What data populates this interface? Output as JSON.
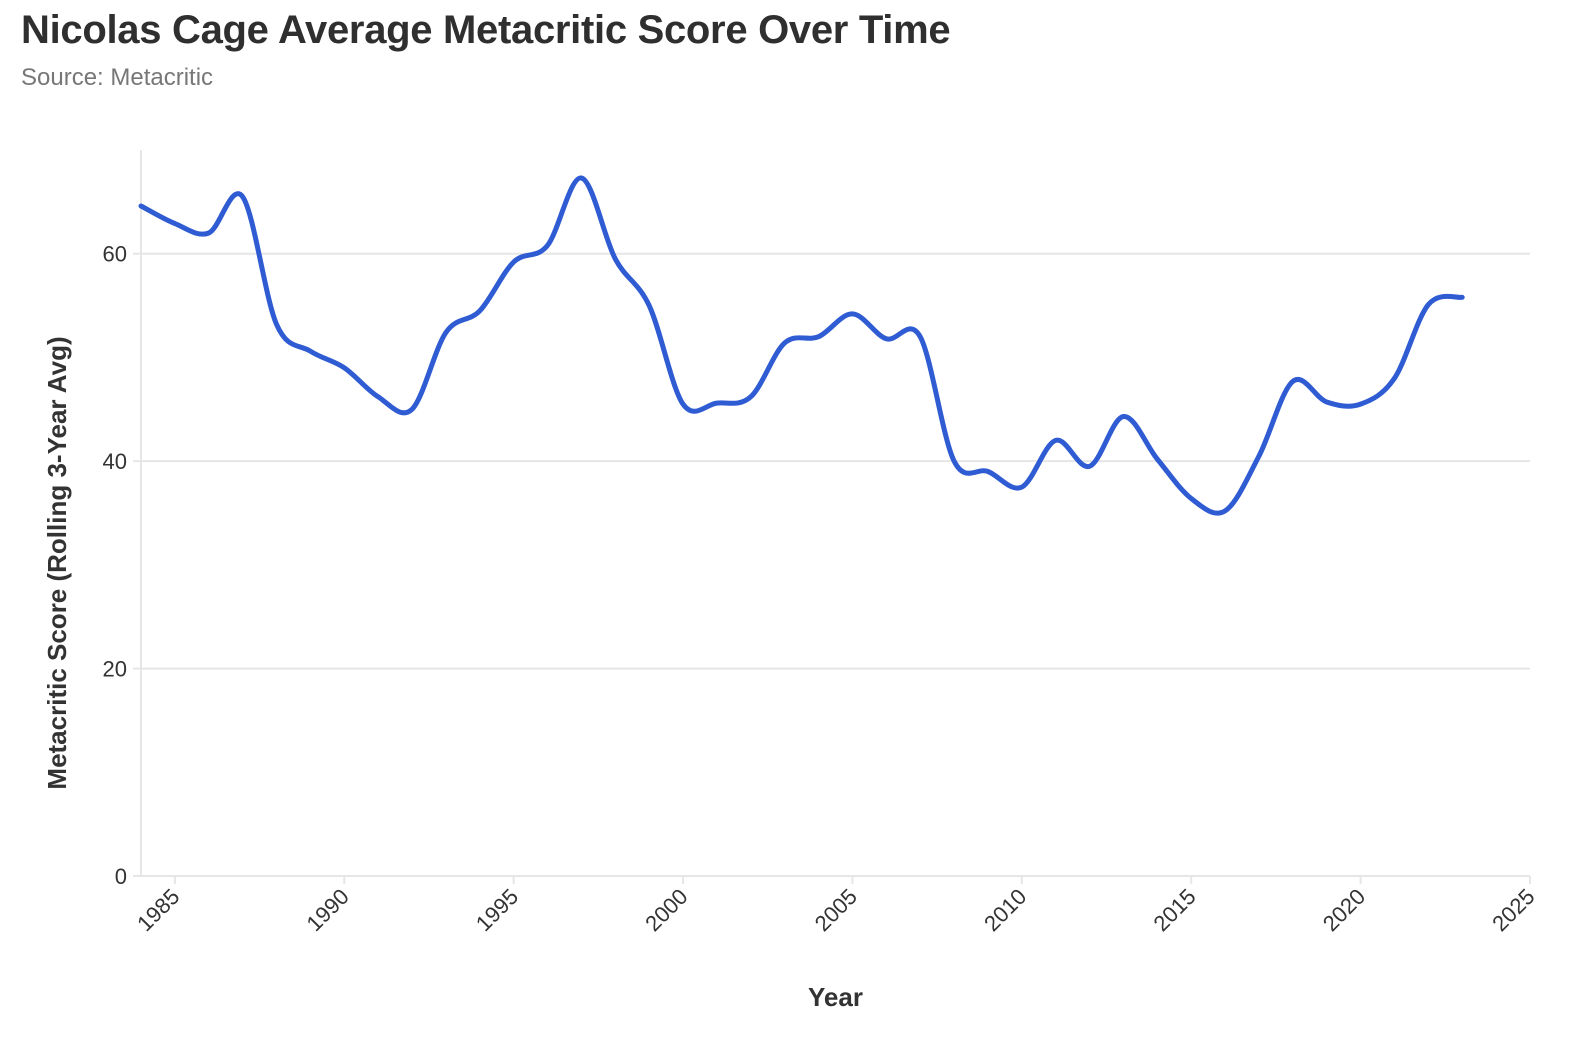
{
  "chart_data": {
    "type": "line",
    "title": "Nicolas Cage Average Metacritic Score Over Time",
    "subtitle": "Source: Metacritic",
    "xlabel": "Year",
    "ylabel": "Metacritic Score (Rolling 3-Year Avg)",
    "xlim": [
      1984,
      2025
    ],
    "ylim": [
      0,
      70
    ],
    "xticks": [
      "1985",
      "1990",
      "1995",
      "2000",
      "2005",
      "2010",
      "2015",
      "2020",
      "2025"
    ],
    "yticks": [
      "0",
      "20",
      "40",
      "60"
    ],
    "grid": "horizontal",
    "series": [
      {
        "color": "#2f5bd3",
        "points": [
          [
            1984,
            64.6
          ],
          [
            1985,
            62.9
          ],
          [
            1986,
            62.0
          ],
          [
            1987,
            65.5
          ],
          [
            1988,
            53.2
          ],
          [
            1989,
            50.6
          ],
          [
            1990,
            49.0
          ],
          [
            1991,
            46.2
          ],
          [
            1992,
            45.0
          ],
          [
            1993,
            52.4
          ],
          [
            1994,
            54.5
          ],
          [
            1995,
            59.2
          ],
          [
            1996,
            60.8
          ],
          [
            1997,
            67.3
          ],
          [
            1998,
            59.5
          ],
          [
            1999,
            55.0
          ],
          [
            2000,
            45.5
          ],
          [
            2001,
            45.6
          ],
          [
            2002,
            46.2
          ],
          [
            2003,
            51.4
          ],
          [
            2004,
            52.0
          ],
          [
            2005,
            54.2
          ],
          [
            2006,
            51.8
          ],
          [
            2007,
            52.0
          ],
          [
            2008,
            40.0
          ],
          [
            2009,
            39.0
          ],
          [
            2010,
            37.5
          ],
          [
            2011,
            42.0
          ],
          [
            2012,
            39.5
          ],
          [
            2013,
            44.3
          ],
          [
            2014,
            40.2
          ],
          [
            2015,
            36.4
          ],
          [
            2016,
            35.2
          ],
          [
            2017,
            40.5
          ],
          [
            2018,
            47.7
          ],
          [
            2019,
            45.7
          ],
          [
            2020,
            45.5
          ],
          [
            2021,
            48.0
          ],
          [
            2022,
            55.1
          ],
          [
            2023,
            55.8
          ]
        ]
      }
    ]
  }
}
